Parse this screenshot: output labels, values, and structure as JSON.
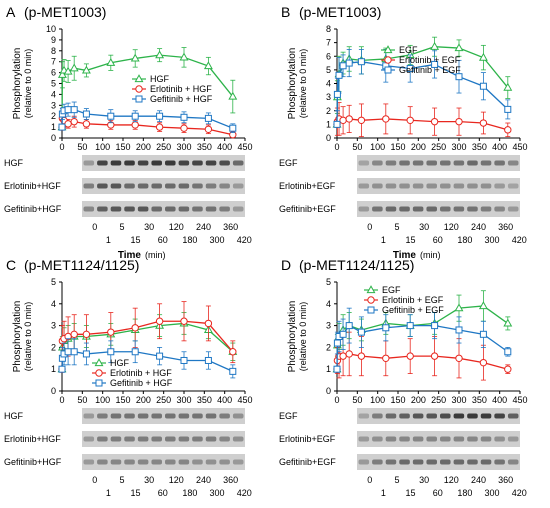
{
  "figure": {
    "blot_times": [
      "0",
      "5",
      "30",
      "120",
      "240",
      "360",
      "1",
      "15",
      "60",
      "180",
      "300",
      "420"
    ],
    "time_axis_label": "Time",
    "time_axis_unit": "(min)"
  },
  "chart_data": [
    {
      "type": "line",
      "panel_letter": "A",
      "title": "(p-MET1003)",
      "ylabel": "Phosphorylation",
      "ylabel2": "(relative to 0 min)",
      "xlabel": "",
      "xlim": [
        0,
        450
      ],
      "ylim": [
        0,
        10
      ],
      "xticks": [
        0,
        50,
        100,
        150,
        200,
        250,
        300,
        350,
        400,
        450
      ],
      "yticks": [
        0,
        1,
        2,
        3,
        4,
        5,
        6,
        7,
        8,
        9,
        10
      ],
      "grid": false,
      "legend_position": "top-right",
      "x": [
        0,
        1,
        5,
        15,
        30,
        60,
        120,
        180,
        240,
        300,
        360,
        420
      ],
      "series": [
        {
          "name": "HGF",
          "color": "#2db34a",
          "marker": "triangle",
          "values": [
            1,
            5.8,
            6.2,
            6.1,
            6.4,
            6.2,
            6.9,
            7.3,
            7.6,
            7.4,
            6.6,
            3.8
          ],
          "errors": [
            0,
            1.2,
            1.0,
            1.0,
            1.1,
            0.6,
            0.7,
            0.8,
            0.6,
            0.9,
            0.8,
            1.5
          ]
        },
        {
          "name": "Erlotinib + HGF",
          "color": "#e8271f",
          "marker": "circle",
          "values": [
            1,
            1.8,
            1.6,
            1.3,
            1.5,
            1.3,
            1.2,
            1.2,
            1.0,
            0.9,
            0.8,
            0.3
          ],
          "errors": [
            0,
            0.6,
            0.6,
            0.4,
            0.5,
            0.4,
            0.4,
            0.4,
            0.4,
            0.4,
            0.4,
            0.2
          ]
        },
        {
          "name": "Gefitinib + HGF",
          "color": "#1f77c4",
          "marker": "square",
          "values": [
            1,
            2.2,
            2.5,
            2.6,
            2.6,
            2.2,
            2.0,
            2.0,
            2.0,
            1.9,
            1.8,
            0.9
          ],
          "errors": [
            0,
            0.5,
            0.6,
            0.6,
            0.7,
            0.5,
            0.6,
            0.5,
            0.5,
            0.5,
            0.5,
            0.4
          ]
        }
      ],
      "blot": {
        "lanes": 12,
        "rows": [
          {
            "label": "HGF",
            "intensity": [
              0.35,
              0.8,
              0.85,
              0.85,
              0.8,
              0.85,
              0.85,
              0.8,
              0.8,
              0.8,
              0.75,
              0.6
            ]
          },
          {
            "label": "Erlotinib+HGF",
            "intensity": [
              0.5,
              0.7,
              0.7,
              0.6,
              0.6,
              0.6,
              0.6,
              0.6,
              0.55,
              0.5,
              0.45,
              0.35
            ]
          },
          {
            "label": "Gefitinib+HGF",
            "intensity": [
              0.45,
              0.65,
              0.7,
              0.7,
              0.7,
              0.6,
              0.6,
              0.6,
              0.55,
              0.55,
              0.5,
              0.35
            ]
          }
        ]
      }
    },
    {
      "type": "line",
      "panel_letter": "B",
      "title": "(p-MET1003)",
      "ylabel": "Phosphorylation",
      "ylabel2": "(relative to 0 min)",
      "xlabel": "",
      "xlim": [
        0,
        450
      ],
      "ylim": [
        0,
        8
      ],
      "xticks": [
        0,
        50,
        100,
        150,
        200,
        250,
        300,
        350,
        400,
        450
      ],
      "yticks": [
        0,
        1,
        2,
        3,
        4,
        5,
        6,
        7,
        8
      ],
      "grid": false,
      "legend_position": "top-center",
      "x": [
        0,
        1,
        5,
        15,
        30,
        60,
        120,
        180,
        240,
        300,
        360,
        420
      ],
      "series": [
        {
          "name": "EGF",
          "color": "#2db34a",
          "marker": "triangle",
          "values": [
            1,
            3.0,
            4.7,
            5.5,
            5.8,
            5.7,
            5.8,
            6.1,
            6.7,
            6.6,
            5.9,
            3.7
          ],
          "errors": [
            0,
            1.2,
            1.3,
            0.8,
            0.9,
            1.0,
            0.8,
            0.7,
            0.7,
            0.6,
            0.9,
            0.8
          ]
        },
        {
          "name": "Erlotinib + EGF",
          "color": "#e8271f",
          "marker": "circle",
          "values": [
            1,
            1.2,
            1.4,
            1.3,
            1.4,
            1.3,
            1.4,
            1.3,
            1.2,
            1.2,
            1.1,
            0.6
          ],
          "errors": [
            0,
            1.0,
            1.2,
            1.0,
            1.0,
            1.2,
            1.1,
            1.0,
            1.0,
            1.0,
            0.8,
            0.5
          ]
        },
        {
          "name": "Gefitinib + EGF",
          "color": "#1f77c4",
          "marker": "square",
          "values": [
            1,
            3.2,
            4.6,
            5.3,
            5.5,
            5.6,
            5.3,
            5.1,
            5.4,
            4.5,
            3.8,
            2.1
          ],
          "errors": [
            0,
            1.2,
            1.3,
            0.8,
            1.0,
            0.9,
            1.2,
            1.0,
            1.0,
            1.2,
            1.0,
            0.7
          ]
        }
      ],
      "blot": {
        "lanes": 12,
        "rows": [
          {
            "label": "EGF",
            "intensity": [
              0.3,
              0.45,
              0.5,
              0.55,
              0.55,
              0.55,
              0.55,
              0.55,
              0.6,
              0.55,
              0.55,
              0.45
            ]
          },
          {
            "label": "Erlotinib+EGF",
            "intensity": [
              0.35,
              0.4,
              0.4,
              0.4,
              0.4,
              0.4,
              0.4,
              0.4,
              0.4,
              0.4,
              0.35,
              0.3
            ]
          },
          {
            "label": "Gefitinib+EGF",
            "intensity": [
              0.35,
              0.55,
              0.6,
              0.6,
              0.6,
              0.6,
              0.55,
              0.55,
              0.55,
              0.5,
              0.45,
              0.35
            ]
          }
        ]
      }
    },
    {
      "type": "line",
      "panel_letter": "C",
      "title": "(p-MET1124/1125)",
      "ylabel": "Phosphorylation",
      "ylabel2": "(relative to 0 min)",
      "xlabel": "",
      "xlim": [
        0,
        450
      ],
      "ylim": [
        0,
        5
      ],
      "xticks": [
        0,
        50,
        100,
        150,
        200,
        250,
        300,
        350,
        400,
        450
      ],
      "yticks": [
        0,
        1,
        2,
        3,
        4,
        5
      ],
      "grid": false,
      "legend_position": "bottom-center",
      "x": [
        0,
        1,
        5,
        15,
        30,
        60,
        120,
        180,
        240,
        300,
        360,
        420
      ],
      "series": [
        {
          "name": "HGF",
          "color": "#2db34a",
          "marker": "triangle",
          "values": [
            1,
            2.0,
            2.3,
            2.4,
            2.5,
            2.5,
            2.6,
            2.8,
            3.0,
            3.1,
            2.8,
            1.8
          ],
          "errors": [
            0,
            0.5,
            0.6,
            0.6,
            0.6,
            0.5,
            0.5,
            0.5,
            0.5,
            0.5,
            0.4,
            0.4
          ]
        },
        {
          "name": "Erlotinib + HGF",
          "color": "#e8271f",
          "marker": "circle",
          "values": [
            1,
            2.3,
            2.4,
            2.5,
            2.6,
            2.6,
            2.7,
            2.9,
            3.2,
            3.2,
            3.1,
            1.8
          ],
          "errors": [
            0,
            0.7,
            0.8,
            0.9,
            0.9,
            0.9,
            0.9,
            0.9,
            0.8,
            0.9,
            0.8,
            0.5
          ]
        },
        {
          "name": "Gefitinib + HGF",
          "color": "#1f77c4",
          "marker": "square",
          "values": [
            1,
            1.5,
            1.7,
            1.8,
            1.8,
            1.7,
            1.8,
            1.8,
            1.6,
            1.4,
            1.4,
            0.9
          ],
          "errors": [
            0,
            0.5,
            0.5,
            0.6,
            0.6,
            0.5,
            0.5,
            0.5,
            0.4,
            0.4,
            0.4,
            0.3
          ]
        }
      ],
      "blot": {
        "lanes": 12,
        "rows": [
          {
            "label": "HGF",
            "intensity": [
              0.35,
              0.5,
              0.55,
              0.55,
              0.55,
              0.55,
              0.55,
              0.55,
              0.55,
              0.55,
              0.5,
              0.4
            ]
          },
          {
            "label": "Erlotinib+HGF",
            "intensity": [
              0.35,
              0.5,
              0.5,
              0.5,
              0.5,
              0.5,
              0.5,
              0.5,
              0.5,
              0.5,
              0.45,
              0.4
            ]
          },
          {
            "label": "Gefitinib+HGF",
            "intensity": [
              0.35,
              0.45,
              0.45,
              0.45,
              0.45,
              0.45,
              0.45,
              0.45,
              0.4,
              0.4,
              0.4,
              0.35
            ]
          }
        ]
      }
    },
    {
      "type": "line",
      "panel_letter": "D",
      "title": "(p-MET1124/1125)",
      "ylabel": "Phosphorylation",
      "ylabel2": "(relative to 0 min)",
      "xlabel": "",
      "xlim": [
        0,
        450
      ],
      "ylim": [
        0,
        5
      ],
      "xticks": [
        0,
        50,
        100,
        150,
        200,
        250,
        300,
        350,
        400,
        450
      ],
      "yticks": [
        0,
        1,
        2,
        3,
        4,
        5
      ],
      "grid": false,
      "legend_position": "top-left",
      "x": [
        0,
        1,
        5,
        15,
        30,
        60,
        120,
        180,
        240,
        300,
        360,
        420
      ],
      "series": [
        {
          "name": "EGF",
          "color": "#2db34a",
          "marker": "triangle",
          "values": [
            1,
            2.1,
            2.5,
            2.8,
            3.0,
            2.8,
            3.1,
            3.0,
            3.1,
            3.8,
            3.9,
            3.1
          ],
          "errors": [
            0,
            0.5,
            0.6,
            0.7,
            0.6,
            0.5,
            0.5,
            0.5,
            0.5,
            0.6,
            0.7,
            0.3
          ]
        },
        {
          "name": "Erlotinib + EGF",
          "color": "#e8271f",
          "marker": "circle",
          "values": [
            1,
            1.4,
            1.6,
            1.6,
            1.7,
            1.6,
            1.5,
            1.6,
            1.6,
            1.5,
            1.3,
            1.0
          ],
          "errors": [
            0,
            0.6,
            1.0,
            0.9,
            1.0,
            0.9,
            0.8,
            0.8,
            0.9,
            0.9,
            0.8,
            0.2
          ]
        },
        {
          "name": "Gefitinib + EGF",
          "color": "#1f77c4",
          "marker": "square",
          "values": [
            1,
            2.2,
            2.5,
            2.6,
            3.0,
            2.7,
            2.9,
            3.0,
            3.0,
            2.8,
            2.6,
            1.8
          ],
          "errors": [
            0,
            0.5,
            0.7,
            0.7,
            0.8,
            0.7,
            0.6,
            0.5,
            0.6,
            0.6,
            0.6,
            0.2
          ]
        }
      ],
      "blot": {
        "lanes": 12,
        "rows": [
          {
            "label": "EGF",
            "intensity": [
              0.3,
              0.5,
              0.6,
              0.65,
              0.7,
              0.7,
              0.75,
              0.85,
              0.85,
              0.85,
              0.8,
              0.65
            ]
          },
          {
            "label": "Erlotinib+EGF",
            "intensity": [
              0.35,
              0.4,
              0.45,
              0.45,
              0.45,
              0.45,
              0.45,
              0.45,
              0.45,
              0.45,
              0.4,
              0.35
            ]
          },
          {
            "label": "Gefitinib+EGF",
            "intensity": [
              0.35,
              0.5,
              0.55,
              0.6,
              0.6,
              0.6,
              0.6,
              0.6,
              0.6,
              0.6,
              0.55,
              0.45
            ]
          }
        ]
      }
    }
  ]
}
